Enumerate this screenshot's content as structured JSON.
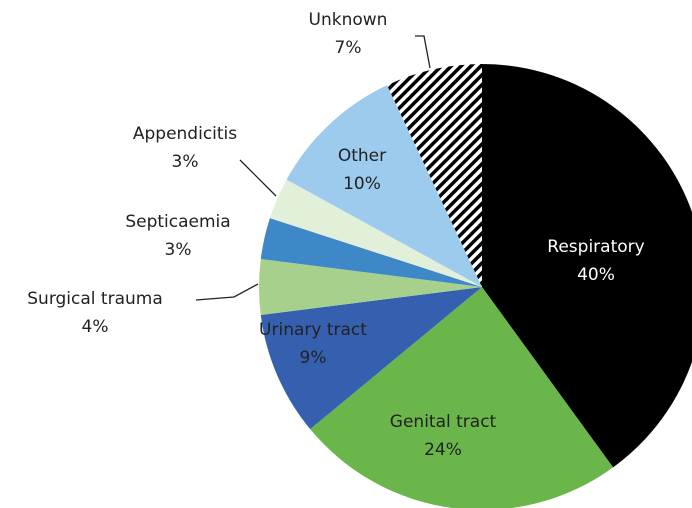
{
  "chart_data": {
    "type": "pie",
    "categories": [
      "Respiratory",
      "Genital tract",
      "Urinary tract",
      "Surgical trauma",
      "Septicaemia",
      "Appendicitis",
      "Other",
      "Unknown"
    ],
    "values": [
      40,
      24,
      9,
      4,
      3,
      3,
      10,
      7
    ],
    "value_labels": [
      "40%",
      "24%",
      "9%",
      "4%",
      "3%",
      "3%",
      "10%",
      "7%"
    ],
    "colors": [
      "#000000",
      "#6ab64a",
      "#3560b0",
      "#a8d08d",
      "#3f88c8",
      "#e2efd9",
      "#9dcbee",
      "hatched"
    ],
    "start": "top",
    "direction": "clockwise"
  }
}
